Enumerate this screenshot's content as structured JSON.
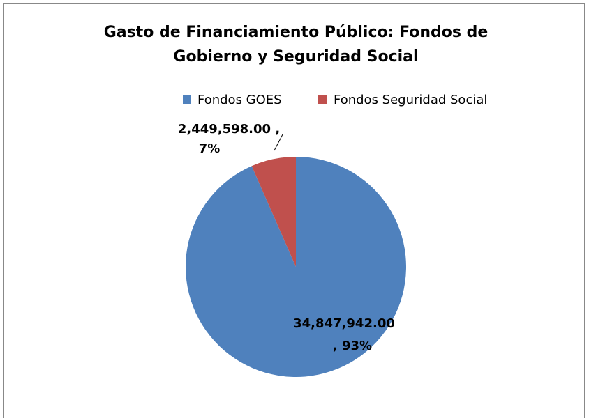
{
  "chart_data": {
    "type": "pie",
    "title": [
      "Gasto de Financiamiento Público: Fondos de",
      "Gobierno y Seguridad Social"
    ],
    "categories": [
      "Fondos GOES",
      "Fondos Seguridad Social"
    ],
    "values": [
      34847942.0,
      2449598.0
    ],
    "value_labels": [
      [
        "34,847,942.00",
        ", 93%"
      ],
      [
        "2,449,598.00 ,",
        "7%"
      ]
    ],
    "colors": [
      "#4f81bd",
      "#c0504d"
    ],
    "legend": "top"
  }
}
